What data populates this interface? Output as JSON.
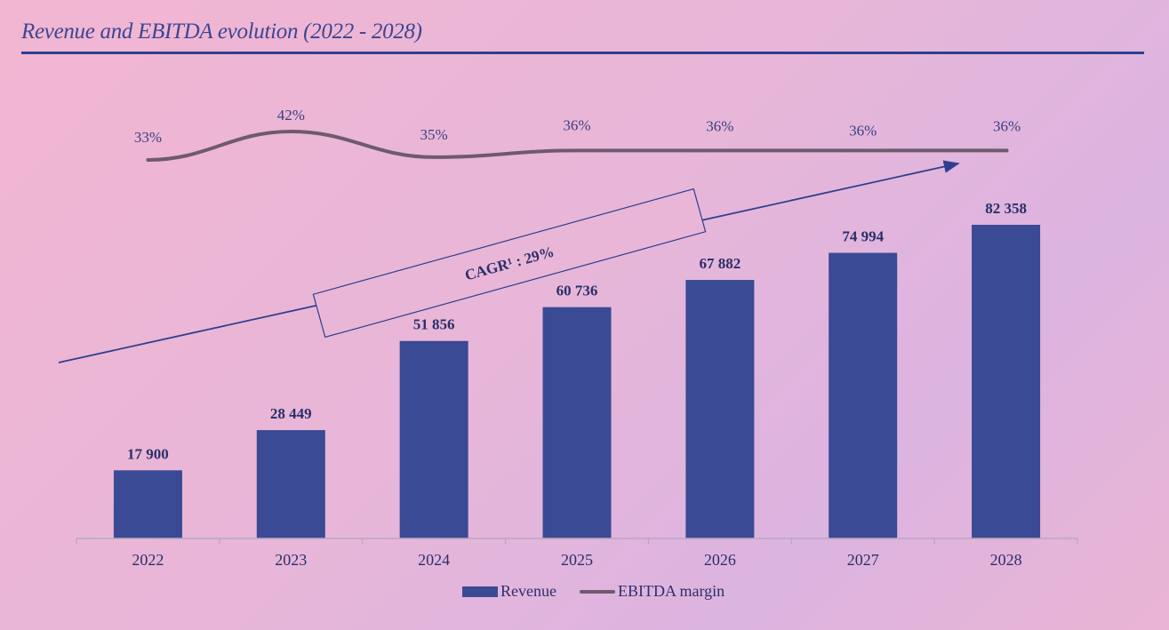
{
  "title": "Revenue and EBITDA evolution (2022 - 2028)",
  "cagr_label": "CAGR¹ : 29%",
  "colors": {
    "bar": "#3a4a94",
    "margin_line": "#6e5a6e",
    "accent": "#2f3f8f",
    "text": "#2a2f6a"
  },
  "chart_data": {
    "type": "bar",
    "title": "Revenue and EBITDA evolution (2022 - 2028)",
    "categories": [
      "2022",
      "2023",
      "2024",
      "2025",
      "2026",
      "2027",
      "2028"
    ],
    "series": [
      {
        "name": "Revenue",
        "type": "bar",
        "values": [
          17900,
          28449,
          51856,
          60736,
          67882,
          74994,
          82358
        ],
        "labels": [
          "17 900",
          "28 449",
          "51 856",
          "60 736",
          "67 882",
          "74 994",
          "82 358"
        ]
      },
      {
        "name": "EBITDA margin",
        "type": "line",
        "values": [
          33,
          42,
          35,
          36,
          36,
          36,
          36
        ],
        "labels": [
          "33%",
          "42%",
          "35%",
          "36%",
          "36%",
          "36%",
          "36%"
        ]
      }
    ],
    "annotation": "CAGR¹ : 29%",
    "legend": [
      "Revenue",
      "EBITDA margin"
    ],
    "legend_position": "bottom",
    "grid": false
  }
}
